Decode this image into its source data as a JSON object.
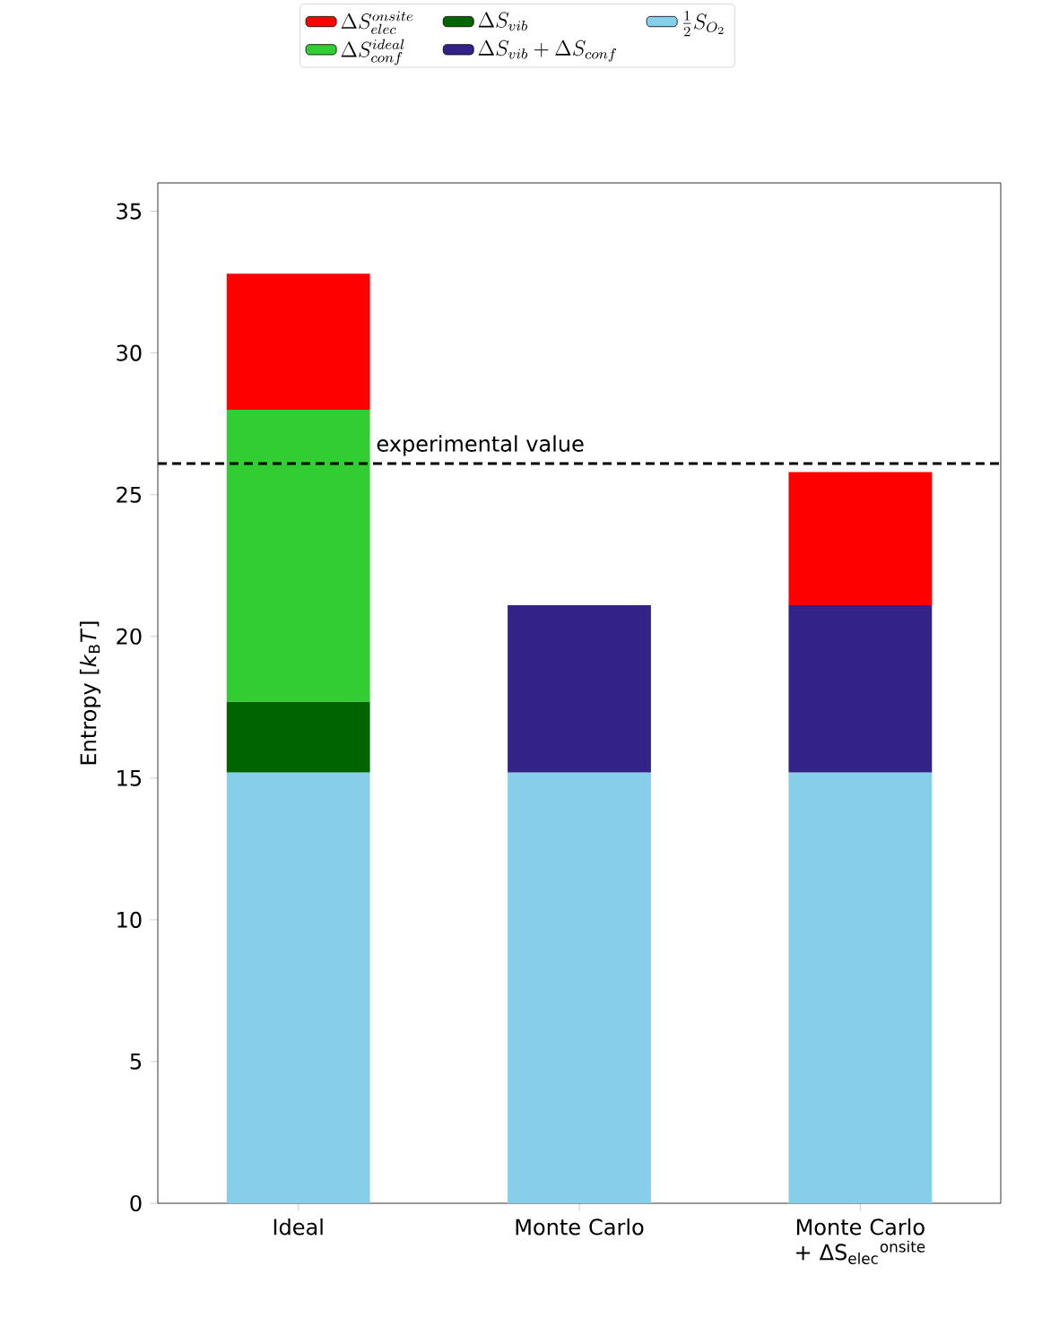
{
  "chart_data": {
    "type": "bar",
    "stacked": true,
    "ylabel": "Entropy [*k*$_{B}$*T*]",
    "categories": [
      "Ideal",
      "Monte Carlo",
      "Monte Carlo + ΔS$_{elec}$$^{onsite}$"
    ],
    "series": [
      {
        "name": "\\frac{1}{2}S_{O_2}",
        "color": "#87ceeb",
        "values": [
          15.2,
          15.2,
          15.2
        ]
      },
      {
        "name": "\\Delta S_{vib}",
        "color": "#006400",
        "values": [
          2.5,
          null,
          null
        ]
      },
      {
        "name": "\\Delta S_{conf}^{ideal}",
        "color": "#32cd32",
        "values": [
          10.3,
          null,
          null
        ]
      },
      {
        "name": "\\Delta S_{vib} + \\Delta S_{conf}",
        "color": "#332288",
        "values": [
          null,
          5.9,
          5.9
        ]
      },
      {
        "name": "\\Delta S_{elec}^{onsite}",
        "color": "#ff0000",
        "values": [
          4.8,
          null,
          4.7
        ]
      }
    ],
    "ylim": [
      0,
      36
    ],
    "yticks": [
      0,
      5,
      10,
      15,
      20,
      25,
      30,
      35
    ],
    "ref_lines": [
      {
        "axis": "y",
        "value": 26.1,
        "label": "experimental value",
        "line_style": "dashed",
        "color": "#000000"
      }
    ],
    "legend": "top"
  }
}
